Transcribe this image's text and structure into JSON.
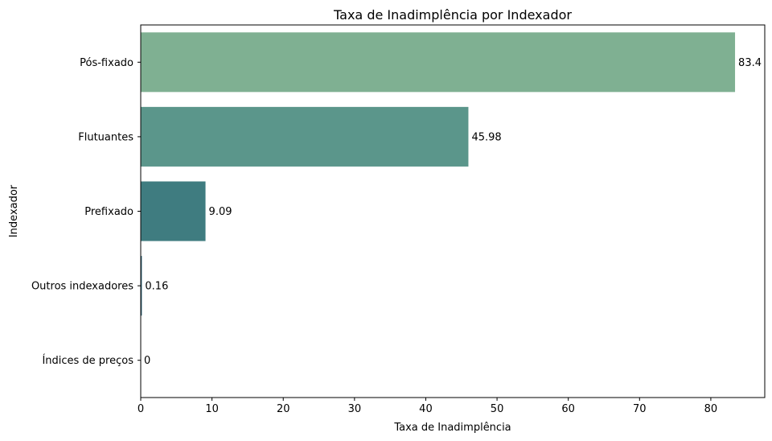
{
  "chart_data": {
    "type": "bar",
    "orientation": "horizontal",
    "title": "Taxa de Inadimplência por Indexador",
    "xlabel": "Taxa de Inadimplência",
    "ylabel": "Indexador",
    "xlim": [
      0,
      87.57
    ],
    "xticks": [
      0,
      10,
      20,
      30,
      40,
      50,
      60,
      70,
      80
    ],
    "grid": false,
    "categories": [
      "Pós-fixado",
      "Flutuantes",
      "Prefixado",
      "Outros indexadores",
      "Índices de preços"
    ],
    "values": [
      83.4,
      45.98,
      9.09,
      0.16,
      0
    ],
    "value_labels": [
      "83.4",
      "45.98",
      "9.09",
      "0.16",
      "0"
    ],
    "colors": [
      "#7fb092",
      "#5b968b",
      "#3f7c80",
      "#2e6577",
      "#284f6d"
    ]
  }
}
